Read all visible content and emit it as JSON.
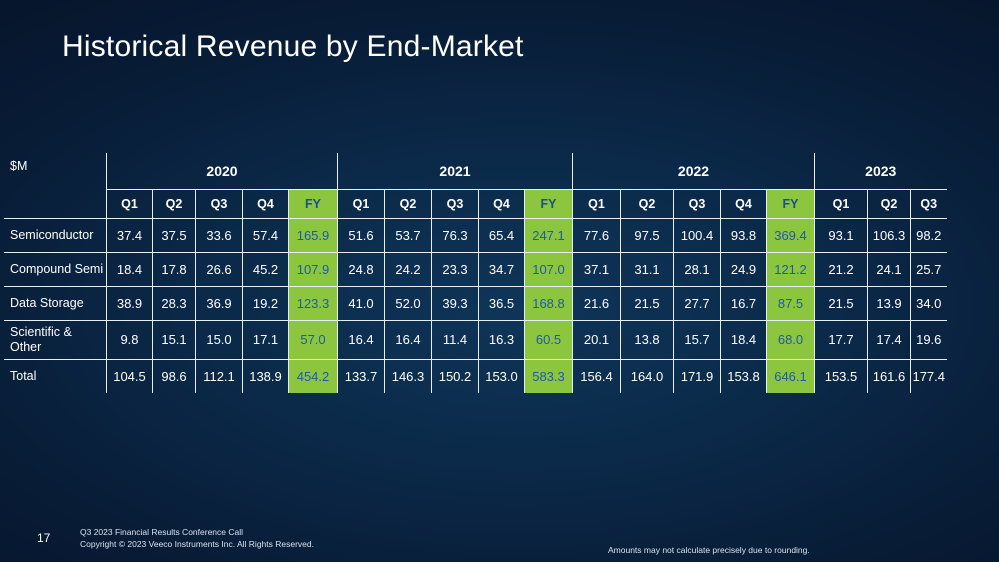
{
  "title": "Historical Revenue by End-Market",
  "table": {
    "unit_label": "$M",
    "years": [
      {
        "label": "2020",
        "span": 5
      },
      {
        "label": "2021",
        "span": 5
      },
      {
        "label": "2022",
        "span": 5
      },
      {
        "label": "2023",
        "span": 3
      }
    ],
    "columns": [
      "Q1",
      "Q2",
      "Q3",
      "Q4",
      "FY",
      "Q1",
      "Q2",
      "Q3",
      "Q4",
      "FY",
      "Q1",
      "Q2",
      "Q3",
      "Q4",
      "FY",
      "Q1",
      "Q2",
      "Q3"
    ],
    "fy_column_indices": [
      4,
      9,
      14
    ],
    "rows": [
      {
        "label": "Semiconductor",
        "values": [
          "37.4",
          "37.5",
          "33.6",
          "57.4",
          "165.9",
          "51.6",
          "53.7",
          "76.3",
          "65.4",
          "247.1",
          "77.6",
          "97.5",
          "100.4",
          "93.8",
          "369.4",
          "93.1",
          "106.3",
          "98.2"
        ]
      },
      {
        "label": "Compound Semi",
        "values": [
          "18.4",
          "17.8",
          "26.6",
          "45.2",
          "107.9",
          "24.8",
          "24.2",
          "23.3",
          "34.7",
          "107.0",
          "37.1",
          "31.1",
          "28.1",
          "24.9",
          "121.2",
          "21.2",
          "24.1",
          "25.7"
        ]
      },
      {
        "label": "Data Storage",
        "values": [
          "38.9",
          "28.3",
          "36.9",
          "19.2",
          "123.3",
          "41.0",
          "52.0",
          "39.3",
          "36.5",
          "168.8",
          "21.6",
          "21.5",
          "27.7",
          "16.7",
          "87.5",
          "21.5",
          "13.9",
          "34.0"
        ]
      },
      {
        "label": "Scientific & Other",
        "values": [
          "9.8",
          "15.1",
          "15.0",
          "17.1",
          "57.0",
          "16.4",
          "16.4",
          "11.4",
          "16.3",
          "60.5",
          "20.1",
          "13.8",
          "15.7",
          "18.4",
          "68.0",
          "17.7",
          "17.4",
          "19.6"
        ]
      },
      {
        "label": "Total",
        "values": [
          "104.5",
          "98.6",
          "112.1",
          "138.9",
          "454.2",
          "133.7",
          "146.3",
          "150.2",
          "153.0",
          "583.3",
          "156.4",
          "164.0",
          "171.9",
          "153.8",
          "646.1",
          "153.5",
          "161.6",
          "177.4"
        ]
      }
    ]
  },
  "footer": {
    "page_number": "17",
    "line1": "Q3 2023 Financial Results Conference Call",
    "line2": "Copyright © 2023 Veeco Instruments Inc. All Rights Reserved.",
    "note": "Amounts may not calculate precisely due to rounding."
  },
  "colors": {
    "fy_highlight": "#8cc63f",
    "fy_text": "#1e5aa8",
    "background": "#0b2a4a"
  }
}
